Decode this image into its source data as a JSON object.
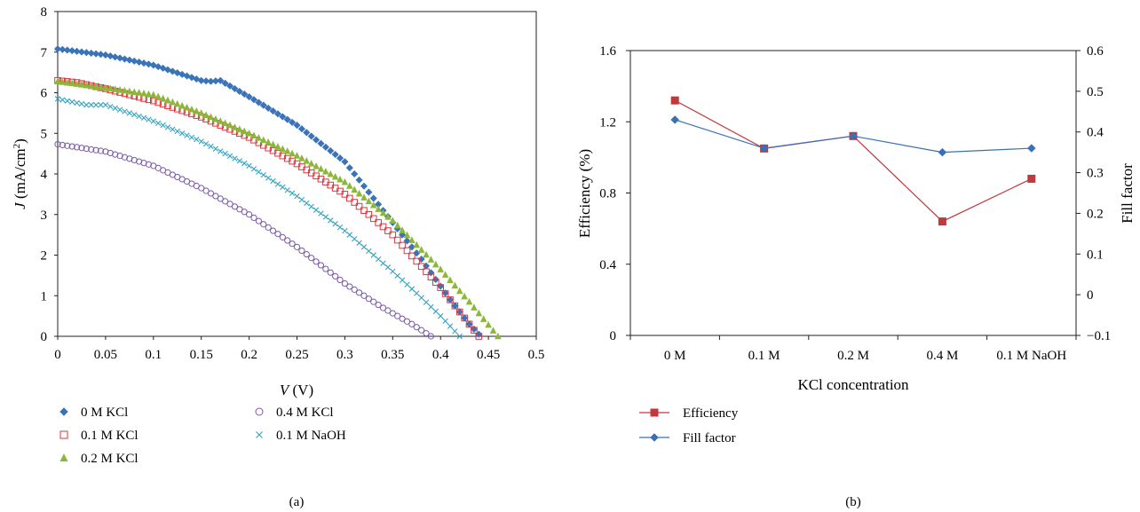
{
  "chart_data": [
    {
      "type": "scatter",
      "panel_label": "(a)",
      "xlabel_italic": "V",
      "xlabel_unit": " (V)",
      "ylabel_italic": "J",
      "ylabel_unit": " (mA/cm",
      "ylabel_sup": "2",
      "ylabel_close": ")",
      "xlim": [
        0,
        0.5
      ],
      "ylim": [
        0,
        8
      ],
      "x_ticks": [
        "0",
        "0.05",
        "0.1",
        "0.15",
        "0.2",
        "0.25",
        "0.3",
        "0.35",
        "0.4",
        "0.45",
        "0.5"
      ],
      "y_ticks": [
        "0",
        "1",
        "2",
        "3",
        "4",
        "5",
        "6",
        "7",
        "8"
      ],
      "legend_position": "below",
      "series": [
        {
          "name": "0 M KCl",
          "marker": "filled-diamond",
          "color": "#3b73b9",
          "x": [
            0,
            0.05,
            0.1,
            0.15,
            0.16,
            0.17,
            0.2,
            0.25,
            0.3,
            0.35,
            0.38,
            0.41,
            0.43,
            0.44
          ],
          "y": [
            7.08,
            6.93,
            6.68,
            6.3,
            6.28,
            6.3,
            5.9,
            5.2,
            4.3,
            2.8,
            1.9,
            0.9,
            0.3,
            0.05
          ]
        },
        {
          "name": "0.1 M KCl",
          "marker": "open-square",
          "color": "#d9373f",
          "x": [
            0,
            0.02,
            0.05,
            0.1,
            0.15,
            0.2,
            0.25,
            0.3,
            0.35,
            0.4,
            0.42,
            0.44
          ],
          "y": [
            6.3,
            6.25,
            6.1,
            5.8,
            5.4,
            4.9,
            4.25,
            3.5,
            2.5,
            1.2,
            0.6,
            0
          ]
        },
        {
          "name": "0.2 M KCl",
          "marker": "filled-triangle",
          "color": "#8cb83a",
          "x": [
            0,
            0.05,
            0.1,
            0.15,
            0.2,
            0.25,
            0.3,
            0.35,
            0.4,
            0.43,
            0.46
          ],
          "y": [
            6.28,
            6.12,
            5.95,
            5.5,
            5.0,
            4.45,
            3.8,
            2.85,
            1.65,
            0.85,
            0
          ]
        },
        {
          "name": "0.4 M KCl",
          "marker": "open-circle",
          "color": "#7b5aa6",
          "x": [
            0,
            0.05,
            0.1,
            0.15,
            0.2,
            0.25,
            0.3,
            0.34,
            0.37,
            0.39
          ],
          "y": [
            4.73,
            4.55,
            4.2,
            3.65,
            3.0,
            2.2,
            1.3,
            0.7,
            0.3,
            0
          ]
        },
        {
          "name": "0.1 M NaOH",
          "marker": "cross",
          "color": "#33a3c0",
          "x": [
            0,
            0.03,
            0.05,
            0.1,
            0.15,
            0.2,
            0.25,
            0.3,
            0.35,
            0.38,
            0.4,
            0.42
          ],
          "y": [
            5.85,
            5.7,
            5.7,
            5.3,
            4.8,
            4.2,
            3.45,
            2.6,
            1.6,
            0.95,
            0.5,
            0
          ]
        }
      ]
    },
    {
      "type": "line",
      "panel_label": "(b)",
      "xlabel": "KCl concentration",
      "ylabel_left": "Efficiency (%)",
      "ylabel_right": "Fill factor",
      "categories": [
        "0 M",
        "0.1 M",
        "0.2 M",
        "0.4 M",
        "0.1 M NaOH"
      ],
      "ylim_left": [
        0,
        1.6
      ],
      "ylim_right": [
        -0.1,
        0.6
      ],
      "y_ticks_left": [
        "0",
        "0.4",
        "0.8",
        "1.2",
        "1.6"
      ],
      "y_ticks_right": [
        "−0.1",
        "0",
        "0.1",
        "0.2",
        "0.3",
        "0.4",
        "0.5",
        "0.6"
      ],
      "legend_position": "below-left",
      "series": [
        {
          "name": "Efficiency",
          "axis": "left",
          "marker": "square",
          "color": "#c0393d",
          "values": [
            1.32,
            1.05,
            1.12,
            0.64,
            0.88
          ]
        },
        {
          "name": "Fill factor",
          "axis": "right",
          "marker": "diamond",
          "color": "#3b6fb6",
          "values": [
            0.43,
            0.36,
            0.39,
            0.35,
            0.36
          ]
        }
      ]
    }
  ]
}
